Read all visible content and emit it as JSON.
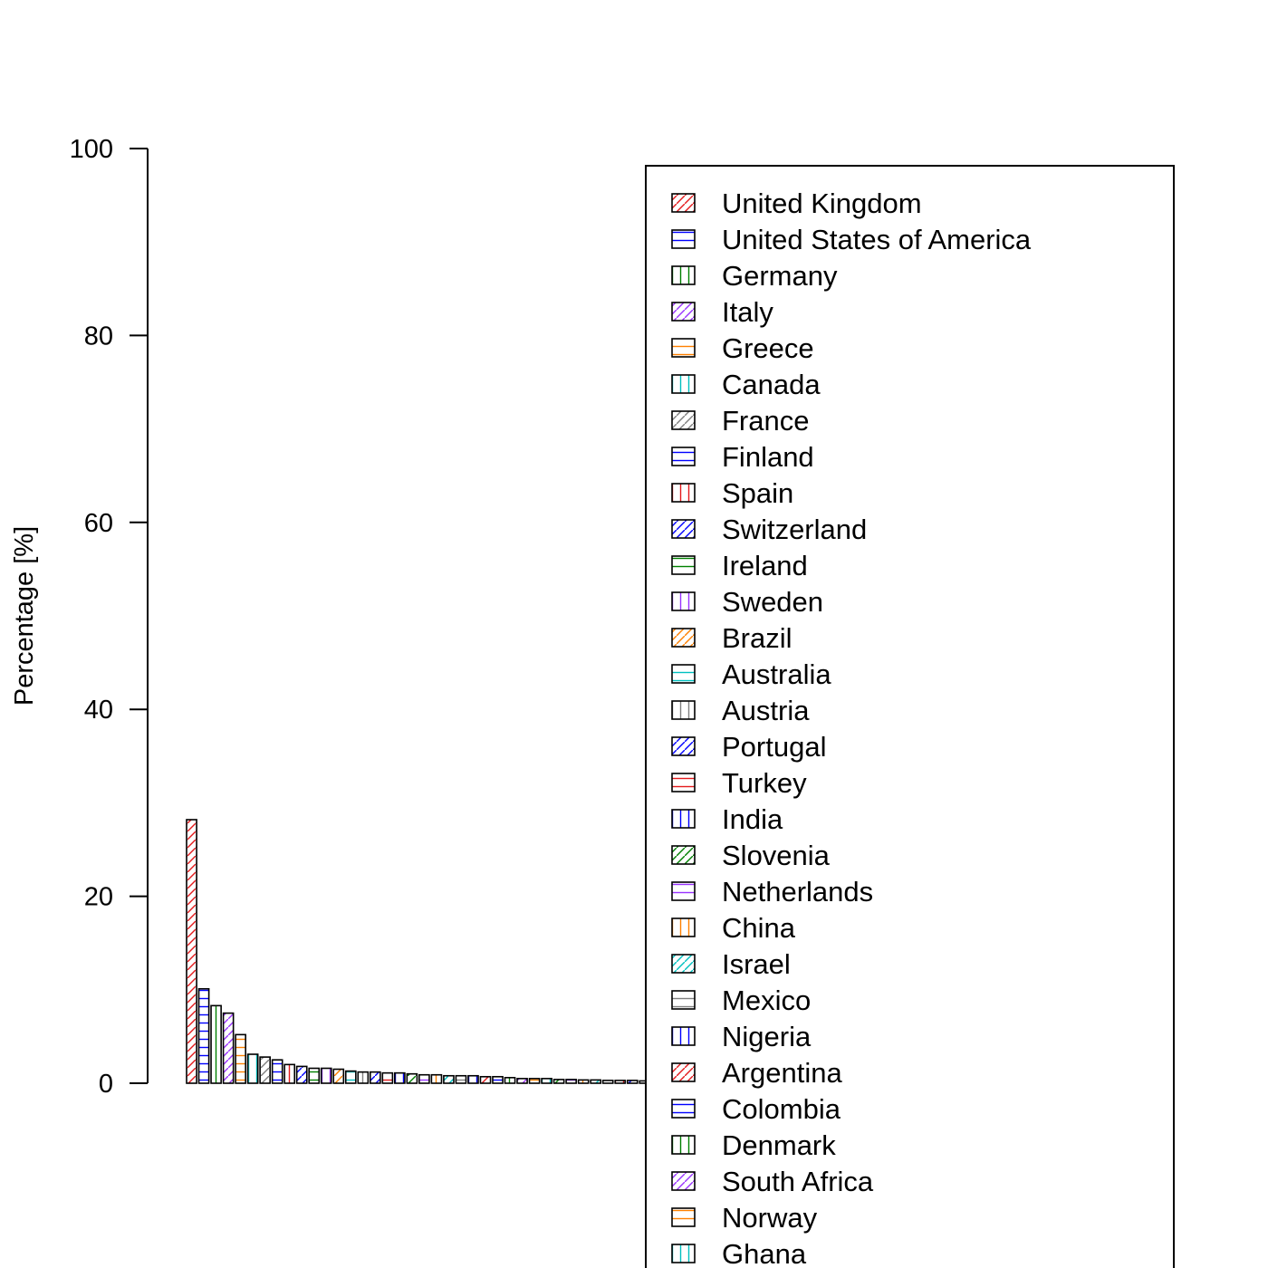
{
  "chart_data": {
    "type": "bar",
    "title": "",
    "xlabel": "",
    "ylabel": "Percentage [%]",
    "ylim": [
      0,
      100
    ],
    "yticks": [
      0,
      20,
      40,
      60,
      80,
      100
    ],
    "grid": false,
    "legend_position": "top-right",
    "categories": [
      "United Kingdom",
      "United States of America",
      "Germany",
      "Italy",
      "Greece",
      "Canada",
      "France",
      "Finland",
      "Spain",
      "Switzerland",
      "Ireland",
      "Sweden",
      "Brazil",
      "Australia",
      "Austria",
      "Portugal",
      "Turkey",
      "India",
      "Slovenia",
      "Netherlands",
      "China",
      "Israel",
      "Mexico",
      "Nigeria",
      "Argentina",
      "Colombia",
      "Denmark",
      "South Africa",
      "Norway",
      "Ghana",
      "",
      "",
      "",
      "",
      "",
      "",
      "",
      "",
      "",
      "",
      "",
      "",
      "",
      "",
      "",
      "",
      "",
      "",
      "",
      "",
      "",
      "",
      "",
      "",
      "",
      "",
      "",
      "",
      "",
      "",
      "",
      "",
      "",
      "",
      "",
      "",
      "",
      "",
      "",
      "",
      "",
      "",
      "",
      "",
      "",
      "",
      "",
      "",
      ""
    ],
    "values": [
      28.2,
      10.1,
      8.3,
      7.5,
      5.2,
      3.1,
      2.8,
      2.5,
      2.0,
      1.8,
      1.6,
      1.6,
      1.5,
      1.3,
      1.2,
      1.2,
      1.1,
      1.1,
      1.0,
      0.9,
      0.9,
      0.8,
      0.8,
      0.8,
      0.7,
      0.7,
      0.6,
      0.5,
      0.5,
      0.5,
      0.4,
      0.4,
      0.35,
      0.35,
      0.3,
      0.3,
      0.3,
      0.25,
      0.25,
      0.2,
      0.2,
      0.2,
      0.15,
      0.15,
      0.15,
      0.1,
      0.1,
      0.1,
      0.1,
      0.1,
      0.1,
      0.05,
      0.05,
      0.05,
      0.05,
      0.05,
      0.05,
      0.05,
      0.05,
      0.05,
      0.05,
      0.05,
      0.05,
      0.05,
      0.05,
      0.05,
      0.05,
      0.05,
      0.05,
      0.05,
      0.05,
      0.05,
      0.05,
      0.05,
      0.05,
      0.05,
      0.05,
      0.05,
      0.05
    ],
    "palette": [
      "#e41a1c",
      "#0000ff",
      "#008000",
      "#9933ff",
      "#ff8000",
      "#00c0c0",
      "#808080"
    ],
    "legend": [
      {
        "label": "United Kingdom",
        "color": "#e41a1c",
        "pattern": "diag45"
      },
      {
        "label": "United States of America",
        "color": "#0000ff",
        "pattern": "horizontal"
      },
      {
        "label": "Germany",
        "color": "#008000",
        "pattern": "vertical"
      },
      {
        "label": "Italy",
        "color": "#9933ff",
        "pattern": "diag45"
      },
      {
        "label": "Greece",
        "color": "#ff8000",
        "pattern": "horizontal"
      },
      {
        "label": "Canada",
        "color": "#00c0c0",
        "pattern": "vertical"
      },
      {
        "label": "France",
        "color": "#808080",
        "pattern": "diag45"
      },
      {
        "label": "Finland",
        "color": "#0000ff",
        "pattern": "horizontal"
      },
      {
        "label": "Spain",
        "color": "#e41a1c",
        "pattern": "vertical"
      },
      {
        "label": "Switzerland",
        "color": "#0000ff",
        "pattern": "diag45"
      },
      {
        "label": "Ireland",
        "color": "#008000",
        "pattern": "horizontal"
      },
      {
        "label": "Sweden",
        "color": "#9933ff",
        "pattern": "vertical"
      },
      {
        "label": "Brazil",
        "color": "#ff8000",
        "pattern": "diag45"
      },
      {
        "label": "Australia",
        "color": "#00c0c0",
        "pattern": "horizontal"
      },
      {
        "label": "Austria",
        "color": "#808080",
        "pattern": "vertical"
      },
      {
        "label": "Portugal",
        "color": "#0000ff",
        "pattern": "diag45"
      },
      {
        "label": "Turkey",
        "color": "#e41a1c",
        "pattern": "horizontal"
      },
      {
        "label": "India",
        "color": "#0000ff",
        "pattern": "vertical"
      },
      {
        "label": "Slovenia",
        "color": "#008000",
        "pattern": "diag45"
      },
      {
        "label": "Netherlands",
        "color": "#9933ff",
        "pattern": "horizontal"
      },
      {
        "label": "China",
        "color": "#ff8000",
        "pattern": "vertical"
      },
      {
        "label": "Israel",
        "color": "#00c0c0",
        "pattern": "diag45"
      },
      {
        "label": "Mexico",
        "color": "#808080",
        "pattern": "horizontal"
      },
      {
        "label": "Nigeria",
        "color": "#0000ff",
        "pattern": "vertical"
      },
      {
        "label": "Argentina",
        "color": "#e41a1c",
        "pattern": "diag45"
      },
      {
        "label": "Colombia",
        "color": "#0000ff",
        "pattern": "horizontal"
      },
      {
        "label": "Denmark",
        "color": "#008000",
        "pattern": "vertical"
      },
      {
        "label": "South Africa",
        "color": "#9933ff",
        "pattern": "diag45"
      },
      {
        "label": "Norway",
        "color": "#ff8000",
        "pattern": "horizontal"
      },
      {
        "label": "Ghana",
        "color": "#00c0c0",
        "pattern": "vertical"
      }
    ]
  }
}
